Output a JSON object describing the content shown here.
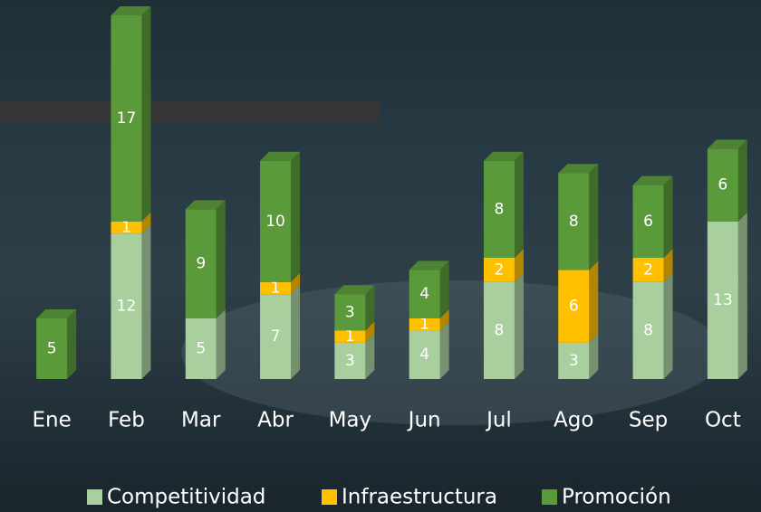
{
  "chart_data": {
    "type": "bar",
    "stacked": true,
    "categories": [
      "Ene",
      "Feb",
      "Mar",
      "Abr",
      "May",
      "Jun",
      "Jul",
      "Ago",
      "Sep",
      "Oct"
    ],
    "series": [
      {
        "name": "Competitividad",
        "color": "#a9cf9f",
        "values": [
          null,
          12,
          5,
          7,
          3,
          4,
          8,
          3,
          8,
          13
        ]
      },
      {
        "name": "Infraestructura",
        "color": "#ffc000",
        "values": [
          null,
          1,
          null,
          1,
          1,
          1,
          2,
          6,
          2,
          null
        ]
      },
      {
        "name": "Promoción",
        "color": "#5b9a3b",
        "values": [
          5,
          17,
          9,
          10,
          3,
          4,
          8,
          8,
          6,
          6
        ]
      }
    ],
    "legend": "bottom"
  }
}
